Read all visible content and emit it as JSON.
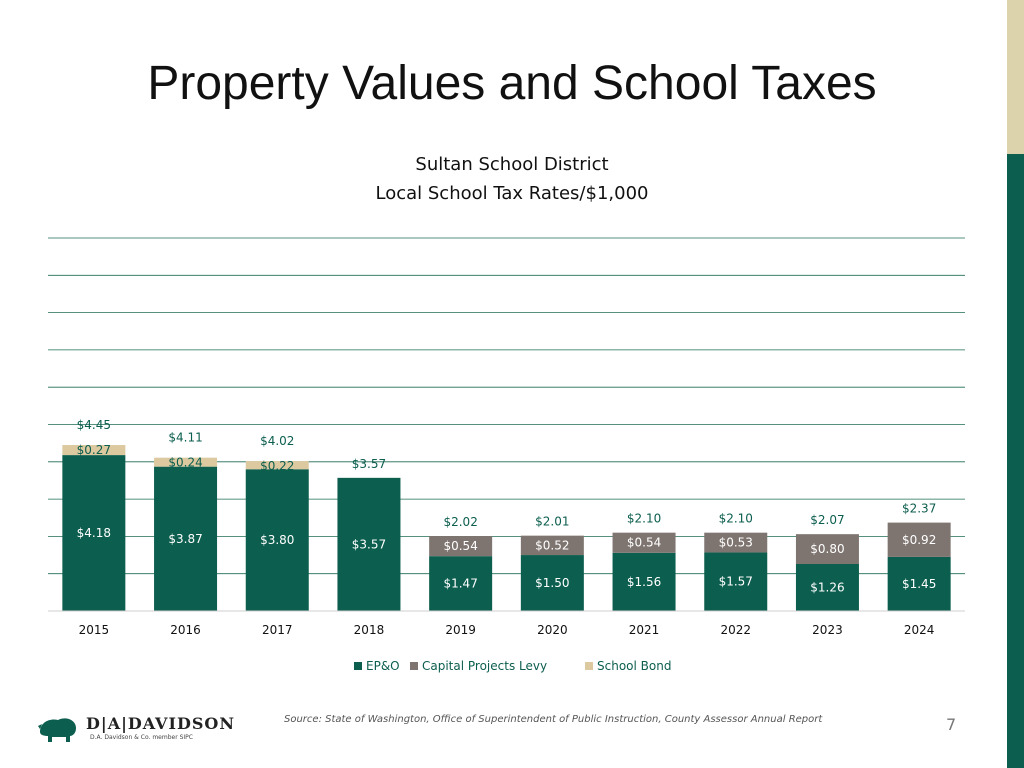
{
  "slide": {
    "title": "Property Values and School Taxes",
    "page_number": "7",
    "source": "Source: State of Washington, Office of Superintendent of Public Instruction, County Assessor Annual Report",
    "logo_text": "D|A|DAVIDSON",
    "logo_subtext": "D.A. Davidson & Co. member SIPC",
    "colors": {
      "accent_green": "#0c5e4f",
      "accent_tan": "#dcd3ad"
    }
  },
  "chart_data": {
    "type": "bar",
    "stacked": true,
    "title": "Sultan School District",
    "subtitle": "Local School Tax Rates/$1,000",
    "categories": [
      "2015",
      "2016",
      "2017",
      "2018",
      "2019",
      "2020",
      "2021",
      "2022",
      "2023",
      "2024"
    ],
    "series": [
      {
        "name": "EP&O",
        "color": "#0c5e4f",
        "values": [
          4.18,
          3.87,
          3.8,
          3.57,
          1.47,
          1.5,
          1.56,
          1.57,
          1.26,
          1.45
        ],
        "labels": [
          "$4.18",
          "$3.87",
          "$3.80",
          "$3.57",
          "$1.47",
          "$1.50",
          "$1.56",
          "$1.57",
          "$1.26",
          "$1.45"
        ]
      },
      {
        "name": "Capital Projects Levy",
        "color": "#7f7570",
        "values": [
          0,
          0,
          0,
          0,
          0.54,
          0.52,
          0.54,
          0.53,
          0.8,
          0.92
        ],
        "labels": [
          "",
          "",
          "",
          "",
          "$0.54",
          "$0.52",
          "$0.54",
          "$0.53",
          "$0.80",
          "$0.92"
        ]
      },
      {
        "name": "School Bond",
        "color": "#dcc9a0",
        "values": [
          0.27,
          0.24,
          0.22,
          0,
          0,
          0,
          0,
          0,
          0,
          0
        ],
        "labels": [
          "$0.27",
          "$0.24",
          "$0.22",
          "",
          "",
          "",
          "",
          "",
          "",
          ""
        ]
      }
    ],
    "totals": [
      "$4.45",
      "$4.11",
      "$4.02",
      "$3.57",
      "$2.02",
      "$2.01",
      "$2.10",
      "$2.10",
      "$2.07",
      "$2.37"
    ],
    "ylim": [
      0,
      10
    ],
    "grid": true,
    "legend": "bottom-center"
  }
}
